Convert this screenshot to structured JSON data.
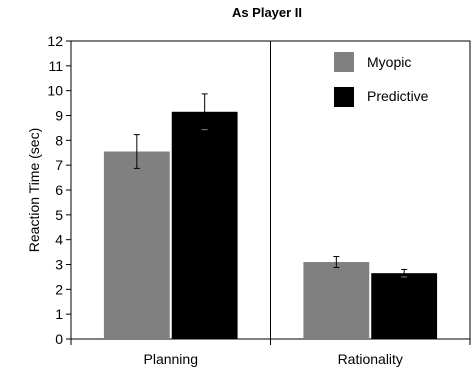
{
  "chart_data": {
    "type": "bar",
    "title": "As Player II",
    "xlabel": "",
    "ylabel": "Reaction Time (sec)",
    "ylim": [
      0,
      12
    ],
    "yticks": [
      0,
      1,
      2,
      3,
      4,
      5,
      6,
      7,
      8,
      9,
      10,
      11,
      12
    ],
    "categories": [
      "Planning",
      "Rationality"
    ],
    "series": [
      {
        "name": "Myopic",
        "color": "#808080",
        "values": [
          7.55,
          3.1
        ],
        "errors": [
          0.68,
          0.22
        ]
      },
      {
        "name": "Predictive",
        "color": "#000000",
        "values": [
          9.15,
          2.65
        ],
        "errors": [
          0.72,
          0.15
        ]
      }
    ],
    "grid": false,
    "legend": "top-right"
  }
}
